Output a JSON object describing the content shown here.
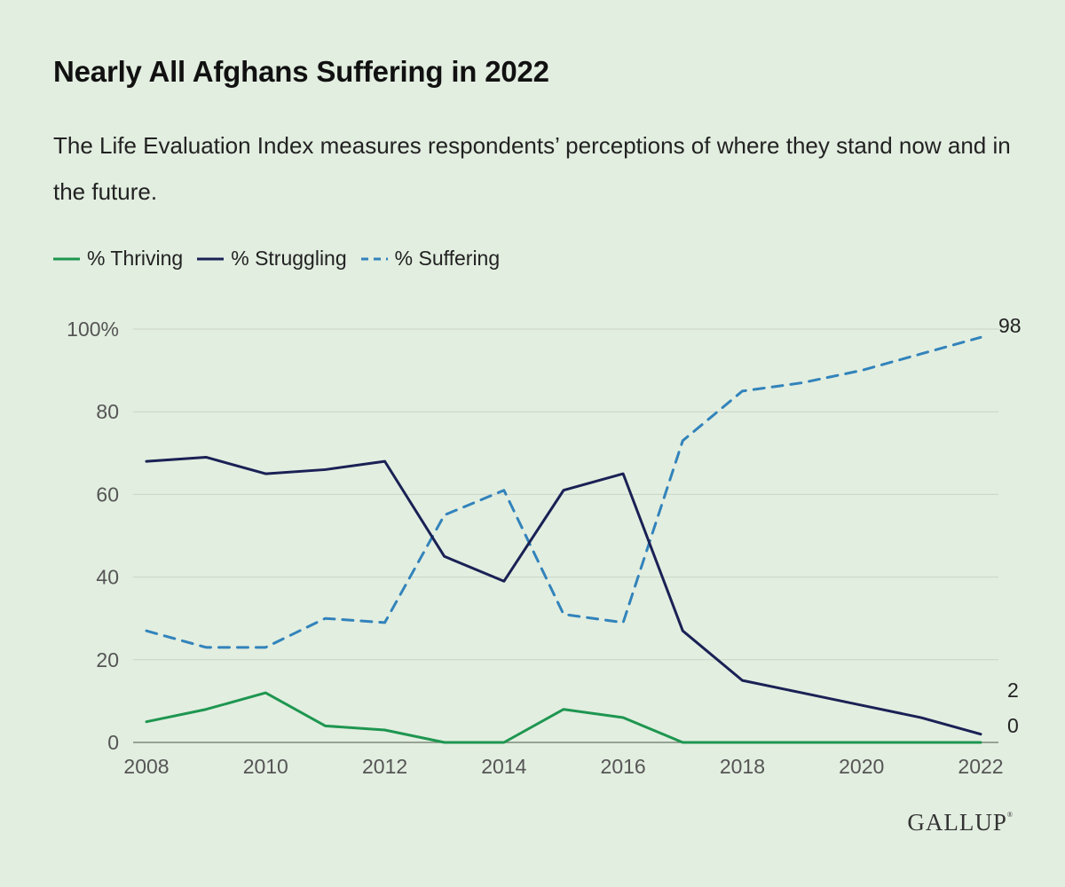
{
  "header": {
    "title": "Nearly All Afghans Suffering in 2022",
    "subtitle": "The Life Evaluation Index measures respondents’ perceptions of where they stand now and in the future."
  },
  "logo": {
    "text": "GALLUP",
    "mark": "®"
  },
  "colors": {
    "thriving": "#1e9650",
    "struggling": "#1a2155",
    "suffering": "#3283bb",
    "gridline": "#c9d4c6",
    "axis": "#555555",
    "background": "#e2eee0"
  },
  "chart_data": {
    "type": "line",
    "title": "Nearly All Afghans Suffering in 2022",
    "x": [
      2008,
      2009,
      2010,
      2011,
      2012,
      2013,
      2014,
      2015,
      2016,
      2017,
      2018,
      2019,
      2020,
      2021,
      2022
    ],
    "xticks": [
      "2008",
      "2010",
      "2012",
      "2014",
      "2016",
      "2018",
      "2020",
      "2022"
    ],
    "yticks": [
      "0",
      "20",
      "40",
      "60",
      "80",
      "100%"
    ],
    "ylim": [
      0,
      100
    ],
    "xlim": [
      2008,
      2022
    ],
    "grid": true,
    "legend_position": "top-left",
    "series": [
      {
        "key": "thriving",
        "name": "% Thriving",
        "style": "solid",
        "values": [
          5,
          8,
          12,
          4,
          3,
          0,
          0,
          8,
          6,
          0,
          0,
          0,
          0,
          0,
          0
        ],
        "end_label": "0"
      },
      {
        "key": "struggling",
        "name": "% Struggling",
        "style": "solid",
        "values": [
          68,
          69,
          65,
          66,
          68,
          45,
          39,
          61,
          65,
          27,
          15,
          12,
          9,
          6,
          2
        ],
        "end_label": "2"
      },
      {
        "key": "suffering",
        "name": "% Suffering",
        "style": "dashed",
        "values": [
          27,
          23,
          23,
          30,
          29,
          55,
          61,
          31,
          29,
          73,
          85,
          87,
          90,
          94,
          98
        ],
        "end_label": "98"
      }
    ]
  }
}
